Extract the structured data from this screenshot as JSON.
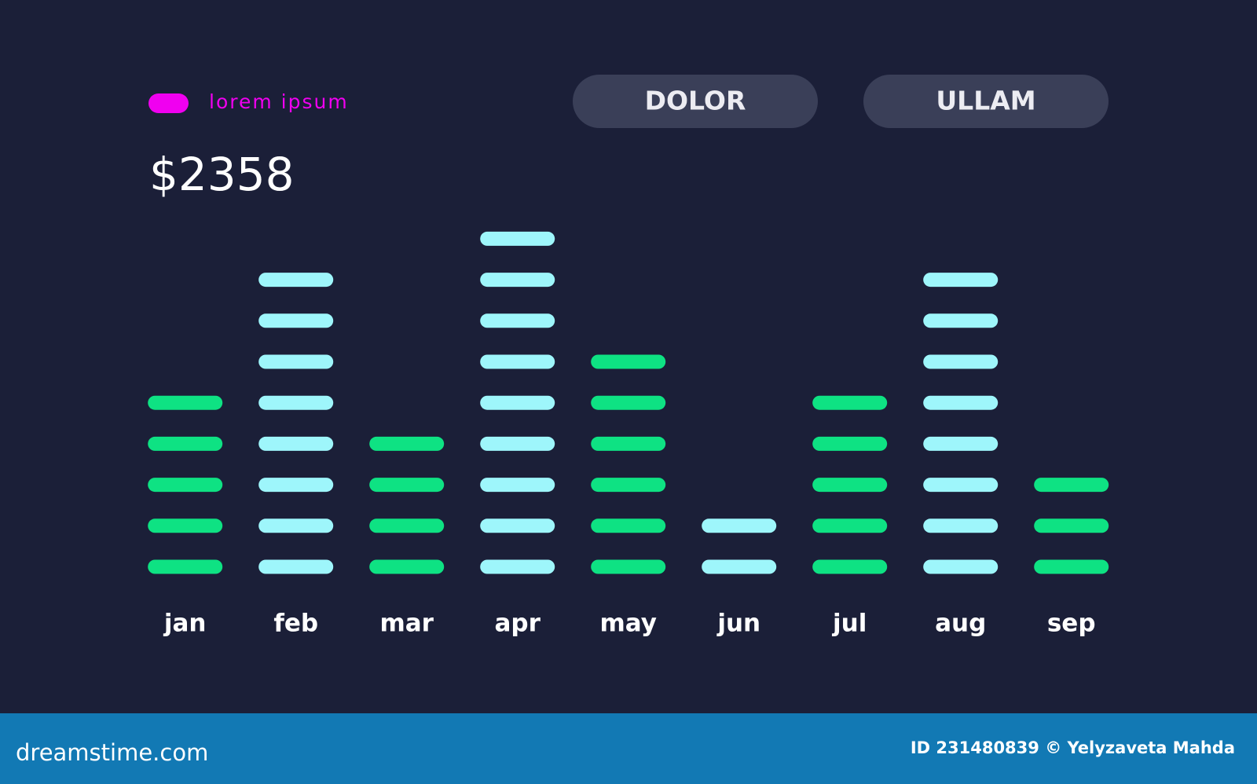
{
  "header": {
    "legend": {
      "label": "lorem ipsum",
      "color": "#f000f0"
    },
    "amount": "$2358",
    "buttons": [
      "DOLOR",
      "ULLAM"
    ]
  },
  "chart_data": {
    "type": "bar",
    "categories": [
      "jan",
      "feb",
      "mar",
      "apr",
      "may",
      "jun",
      "jul",
      "aug",
      "sep"
    ],
    "values": [
      5,
      8,
      4,
      9,
      6,
      2,
      5,
      8,
      3
    ],
    "colors": [
      "#0ee283",
      "#9ef6fb",
      "#0ee283",
      "#9ef6fb",
      "#0ee283",
      "#9ef6fb",
      "#0ee283",
      "#9ef6fb",
      "#0ee283"
    ]
  },
  "footer": {
    "site": "dreamstime.com",
    "credit": "ID 231480839 © Yelyzaveta Mahda"
  }
}
